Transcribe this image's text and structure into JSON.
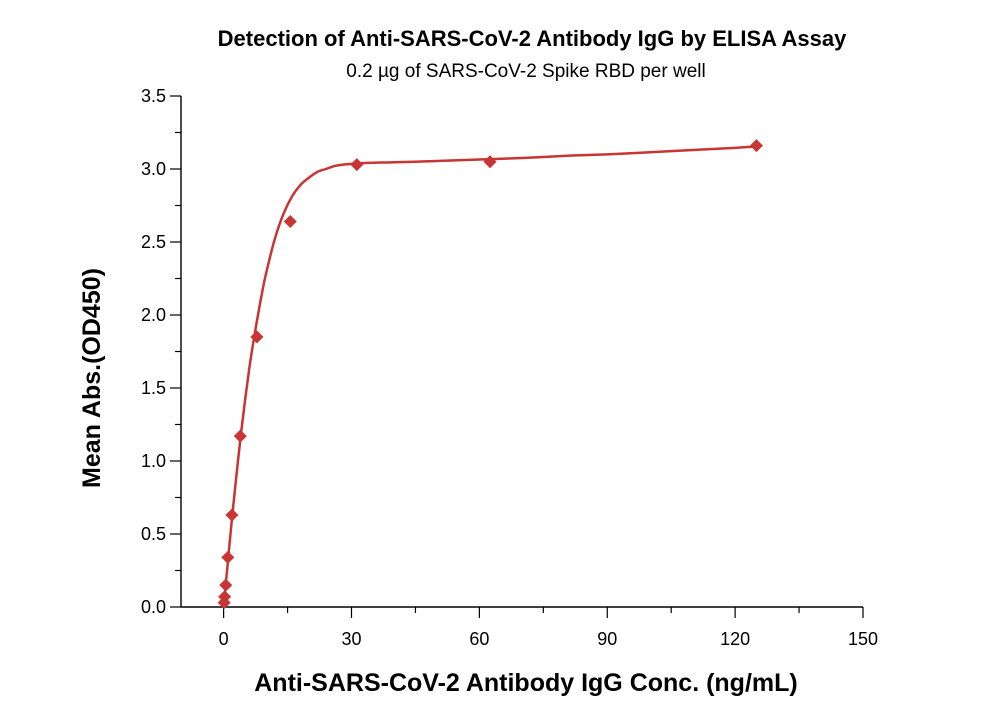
{
  "chart_data": {
    "type": "scatter",
    "title": "Detection of Anti-SARS-CoV-2 Antibody IgG by ELISA Assay",
    "subtitle": "0.2 µg of SARS-CoV-2 Spike RBD per well",
    "xlabel": "Anti-SARS-CoV-2 Antibody IgG Conc. (ng/mL)",
    "ylabel": "Mean Abs.(OD450)",
    "xlim": [
      -10,
      150
    ],
    "ylim": [
      0,
      3.5
    ],
    "x_ticks": [
      0,
      30,
      60,
      90,
      120,
      150
    ],
    "x_tick_labels": [
      "0",
      "30",
      "60",
      "90",
      "120",
      "150"
    ],
    "y_ticks": [
      0,
      0.5,
      1.0,
      1.5,
      2.0,
      2.5,
      3.0,
      3.5
    ],
    "y_tick_labels": [
      "0.0",
      "0.5",
      "1.0",
      "1.5",
      "2.0",
      "2.5",
      "3.0",
      "3.5"
    ],
    "grid": false,
    "legend": "none",
    "series": [
      {
        "marker": "diamond",
        "color": "#c93434",
        "x": [
          0.12,
          0.24,
          0.49,
          0.98,
          1.95,
          3.91,
          7.81,
          15.63,
          31.25,
          62.5,
          125
        ],
        "y": [
          0.03,
          0.07,
          0.15,
          0.34,
          0.63,
          1.17,
          1.85,
          2.64,
          3.03,
          3.05,
          3.16
        ],
        "fit_curve": {
          "color": "#c93434",
          "x": [
            0,
            1,
            2,
            3,
            4,
            5,
            6,
            7,
            8,
            9,
            10,
            12,
            14,
            16,
            18,
            20,
            22,
            24,
            26,
            28,
            30,
            32,
            35,
            40,
            45,
            50,
            60,
            70,
            80,
            90,
            100,
            110,
            120,
            125
          ],
          "y": [
            0.0,
            0.31,
            0.62,
            0.9,
            1.17,
            1.41,
            1.63,
            1.82,
            1.99,
            2.15,
            2.29,
            2.52,
            2.69,
            2.81,
            2.89,
            2.94,
            2.98,
            3.0,
            3.02,
            3.03,
            3.035,
            3.04,
            3.043,
            3.046,
            3.05,
            3.055,
            3.065,
            3.075,
            3.09,
            3.1,
            3.115,
            3.13,
            3.145,
            3.155
          ]
        }
      }
    ]
  }
}
